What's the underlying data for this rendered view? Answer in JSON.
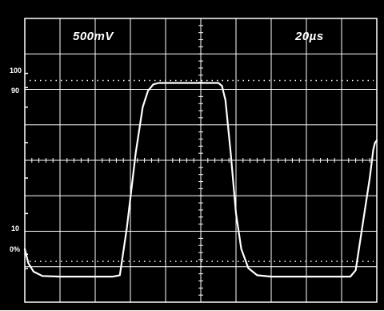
{
  "colors": {
    "background": "#000000",
    "grid": "#ffffff",
    "trace": "#ffffff"
  },
  "scope": {
    "volts_per_div": "500mV",
    "time_per_div": "20µs",
    "reference_labels": [
      "100",
      "90",
      "10",
      "0%"
    ]
  },
  "chart_data": {
    "type": "line",
    "title": "",
    "xlabel": "",
    "ylabel": "",
    "grid": true,
    "divisions": {
      "x": 10,
      "y": 8
    },
    "xlim": [
      0,
      200
    ],
    "ylim": [
      -2.0,
      2.0
    ],
    "x_unit": "µs",
    "y_unit": "V",
    "series": [
      {
        "points": [
          [
            0,
            -1.25
          ],
          [
            2,
            -1.45
          ],
          [
            5,
            -1.57
          ],
          [
            10,
            -1.63
          ],
          [
            20,
            -1.64
          ],
          [
            50,
            -1.64
          ],
          [
            54,
            -1.62
          ],
          [
            58,
            -0.95
          ],
          [
            63,
            0.1
          ],
          [
            67,
            0.75
          ],
          [
            70,
            0.98
          ],
          [
            73,
            1.07
          ],
          [
            76,
            1.09
          ],
          [
            110,
            1.09
          ],
          [
            112,
            1.05
          ],
          [
            114,
            0.85
          ],
          [
            117,
            0.1
          ],
          [
            120,
            -0.75
          ],
          [
            123,
            -1.25
          ],
          [
            127,
            -1.52
          ],
          [
            132,
            -1.62
          ],
          [
            140,
            -1.64
          ],
          [
            185,
            -1.64
          ],
          [
            188,
            -1.55
          ],
          [
            192,
            -0.9
          ],
          [
            196,
            -0.25
          ],
          [
            198,
            0.15
          ],
          [
            199,
            0.25
          ],
          [
            200,
            0.28
          ]
        ]
      }
    ]
  }
}
